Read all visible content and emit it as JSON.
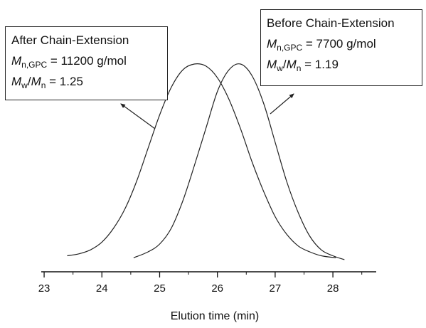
{
  "chart_data": {
    "type": "line",
    "title": "",
    "xlabel": "Elution time (min)",
    "ylabel": "",
    "xlim": [
      22.95,
      28.75
    ],
    "ylim": [
      0,
      1.0
    ],
    "xticks": [
      "23",
      "24",
      "25",
      "26",
      "27",
      "28"
    ],
    "grid": false,
    "series": [
      {
        "x": [
          23.4,
          23.6,
          23.8,
          24.0,
          24.2,
          24.4,
          24.6,
          24.8,
          25.0,
          25.2,
          25.4,
          25.6,
          25.8,
          26.0,
          26.2,
          26.4,
          26.6,
          26.8,
          27.0,
          27.2,
          27.4,
          27.6,
          27.8,
          28.05
        ],
        "y": [
          0.02,
          0.03,
          0.05,
          0.09,
          0.16,
          0.26,
          0.4,
          0.57,
          0.74,
          0.88,
          0.97,
          1.0,
          0.99,
          0.93,
          0.82,
          0.67,
          0.5,
          0.35,
          0.22,
          0.13,
          0.07,
          0.04,
          0.02,
          0.01
        ]
      },
      {
        "x": [
          24.55,
          24.8,
          25.0,
          25.2,
          25.4,
          25.6,
          25.8,
          26.0,
          26.2,
          26.4,
          26.6,
          26.8,
          27.0,
          27.2,
          27.4,
          27.6,
          27.8,
          28.0,
          28.2
        ],
        "y": [
          0.01,
          0.04,
          0.08,
          0.16,
          0.3,
          0.48,
          0.67,
          0.86,
          0.97,
          1.0,
          0.94,
          0.8,
          0.6,
          0.4,
          0.24,
          0.12,
          0.05,
          0.02,
          0.0
        ]
      }
    ],
    "annotations": [
      {
        "id": "after",
        "title": "After Chain-Extension",
        "mn_symbol": "M",
        "mn_subscript": "n,GPC",
        "mn_value": " = 11200 g/mol",
        "mw_symbol": "M",
        "mw_subscript": "w",
        "slash": "/",
        "mn2_symbol": "M",
        "mn2_subscript": "n",
        "pdi_value": " = 1.25"
      },
      {
        "id": "before",
        "title": "Before Chain-Extension",
        "mn_symbol": "M",
        "mn_subscript": "n,GPC",
        "mn_value": " = 7700 g/mol",
        "mw_symbol": "M",
        "mw_subscript": "w",
        "slash": "/",
        "mn2_symbol": "M",
        "mn2_subscript": "n",
        "pdi_value": " = 1.19"
      }
    ]
  },
  "colors": {
    "line": "#222222",
    "axis": "#111111",
    "background": "#ffffff"
  }
}
